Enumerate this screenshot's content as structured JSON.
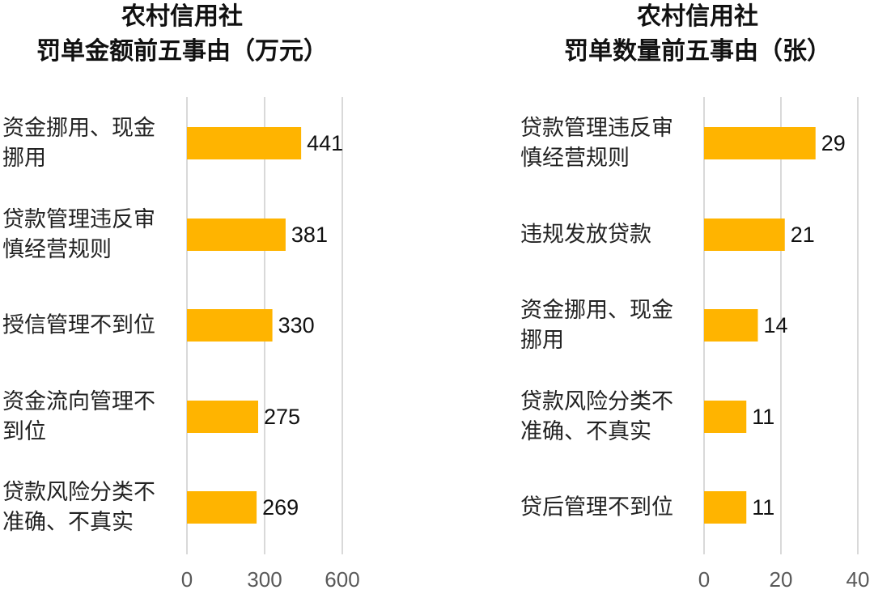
{
  "chart_data": [
    {
      "type": "bar",
      "orientation": "horizontal",
      "title": [
        "农村信用社",
        "罚单金额前五事由（万元）"
      ],
      "categories": [
        "资金挪用、现金挪用",
        "贷款管理违反审慎经营规则",
        "授信管理不到位",
        "资金流向管理不到位",
        "贷款风险分类不准确、不真实"
      ],
      "values": [
        441,
        381,
        330,
        275,
        269
      ],
      "color": "#ffb400",
      "xlim": [
        0,
        600
      ],
      "xticks": [
        0,
        300,
        600
      ],
      "grid": true
    },
    {
      "type": "bar",
      "orientation": "horizontal",
      "title": [
        "农村信用社",
        "罚单数量前五事由（张）"
      ],
      "categories": [
        "贷款管理违反审慎经营规则",
        "违规发放贷款",
        "资金挪用、现金挪用",
        "贷款风险分类不准确、不真实",
        "贷后管理不到位"
      ],
      "values": [
        29,
        21,
        14,
        11,
        11
      ],
      "color": "#ffb400",
      "xlim": [
        0,
        40
      ],
      "xticks": [
        0,
        20,
        40
      ],
      "grid": true
    }
  ]
}
